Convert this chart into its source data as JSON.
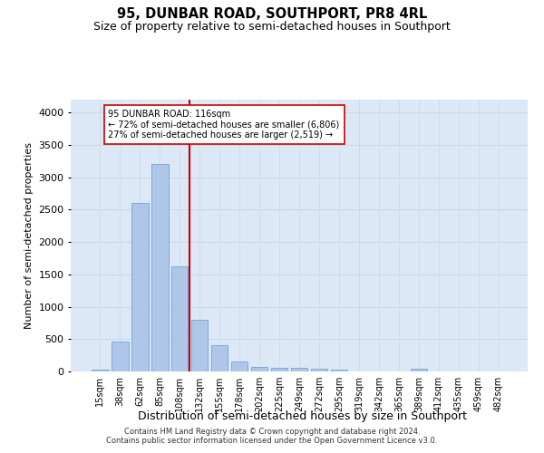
{
  "title": "95, DUNBAR ROAD, SOUTHPORT, PR8 4RL",
  "subtitle": "Size of property relative to semi-detached houses in Southport",
  "xlabel": "Distribution of semi-detached houses by size in Southport",
  "ylabel": "Number of semi-detached properties",
  "categories": [
    "15sqm",
    "38sqm",
    "62sqm",
    "85sqm",
    "108sqm",
    "132sqm",
    "155sqm",
    "178sqm",
    "202sqm",
    "225sqm",
    "249sqm",
    "272sqm",
    "295sqm",
    "319sqm",
    "342sqm",
    "365sqm",
    "389sqm",
    "412sqm",
    "435sqm",
    "459sqm",
    "482sqm"
  ],
  "values": [
    30,
    460,
    2600,
    3200,
    1630,
    800,
    410,
    155,
    75,
    55,
    50,
    40,
    35,
    5,
    5,
    5,
    40,
    5,
    5,
    5,
    5
  ],
  "bar_color": "#aec6e8",
  "bar_edge_color": "#5b9bd5",
  "annotation_line1": "95 DUNBAR ROAD: 116sqm",
  "annotation_line2": "← 72% of semi-detached houses are smaller (6,806)",
  "annotation_line3": "27% of semi-detached houses are larger (2,519) →",
  "vline_color": "#cc0000",
  "annotation_box_facecolor": "#ffffff",
  "annotation_box_edgecolor": "#cc0000",
  "footer1": "Contains HM Land Registry data © Crown copyright and database right 2024.",
  "footer2": "Contains public sector information licensed under the Open Government Licence v3.0.",
  "ylim": [
    0,
    4200
  ],
  "yticks": [
    0,
    500,
    1000,
    1500,
    2000,
    2500,
    3000,
    3500,
    4000
  ],
  "grid_color": "#c8d8e8",
  "bg_color": "#dce8f5",
  "title_fontsize": 10.5,
  "subtitle_fontsize": 9,
  "ylabel_fontsize": 8,
  "xlabel_fontsize": 9,
  "tick_fontsize": 7,
  "footer_fontsize": 6
}
